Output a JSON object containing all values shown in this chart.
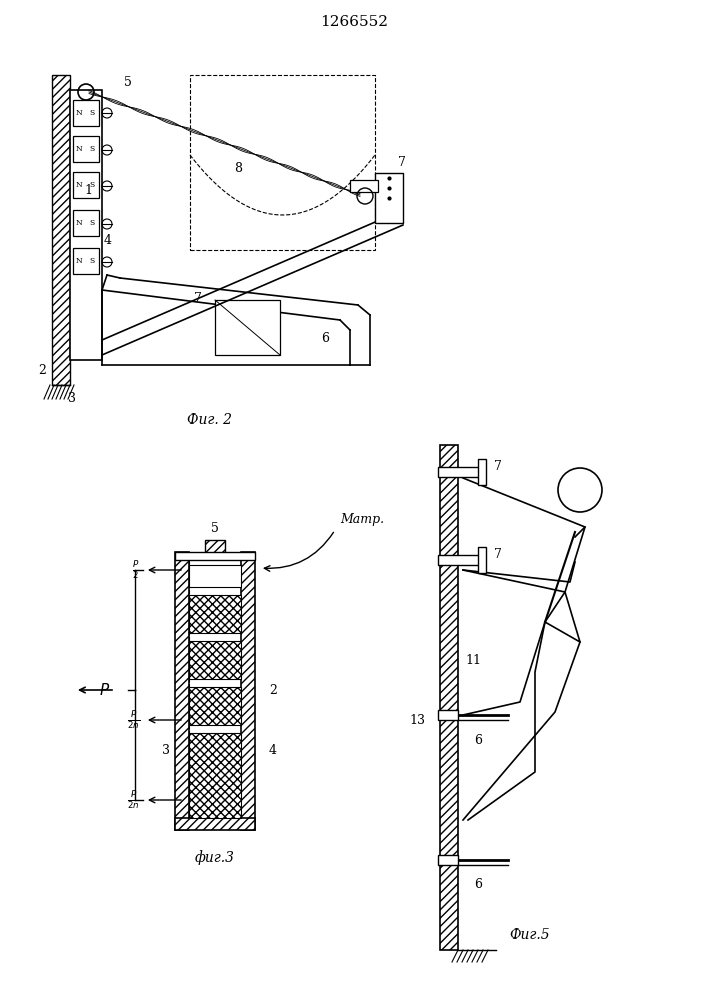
{
  "title": "1266552",
  "fig2_label": "Фиг. 2",
  "fig3_label": "фиг.3",
  "fig5_label": "Фиг.5",
  "bg_color": "#ffffff",
  "line_color": "#000000"
}
